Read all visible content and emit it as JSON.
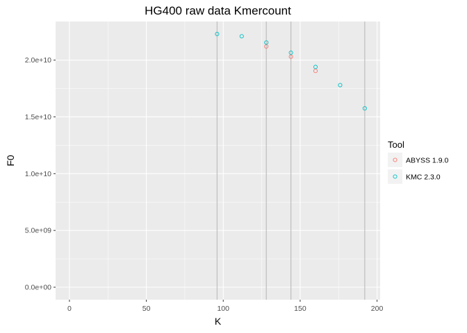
{
  "chart_data": {
    "type": "scatter",
    "title": "HG400 raw data Kmercount",
    "xlabel": "K",
    "ylabel": "F0",
    "xlim": [
      -9,
      202
    ],
    "ylim": [
      -1100000000.0,
      23400000000.0
    ],
    "x_ticks": [
      0,
      50,
      100,
      150,
      200
    ],
    "x_tick_labels": [
      "0",
      "50",
      "100",
      "150",
      "200"
    ],
    "y_ticks": [
      0,
      5000000000.0,
      10000000000.0,
      15000000000.0,
      20000000000.0
    ],
    "y_tick_labels": [
      "0.0e+00",
      "5.0e+09",
      "1.0e+10",
      "1.5e+10",
      "2.0e+10"
    ],
    "vlines": [
      96,
      128,
      144,
      192
    ],
    "grid": true,
    "legend_position": "right",
    "legend_title": "Tool",
    "colors": {
      "panel": "#ebebeb",
      "grid": "#ffffff",
      "vline": "#bdbdbd",
      "abyss": "#f8766d",
      "kmc": "#00bfc4"
    },
    "series": [
      {
        "name": "ABYSS 1.9.0",
        "color": "#f8766d",
        "x": [
          128,
          144,
          160
        ],
        "y": [
          21200000000.0,
          20300000000.0,
          19050000000.0
        ]
      },
      {
        "name": "KMC 2.3.0",
        "color": "#00bfc4",
        "x": [
          96,
          112,
          128,
          144,
          160,
          176,
          192
        ],
        "y": [
          22300000000.0,
          22100000000.0,
          21550000000.0,
          20650000000.0,
          19400000000.0,
          17800000000.0,
          15750000000.0
        ]
      }
    ]
  }
}
